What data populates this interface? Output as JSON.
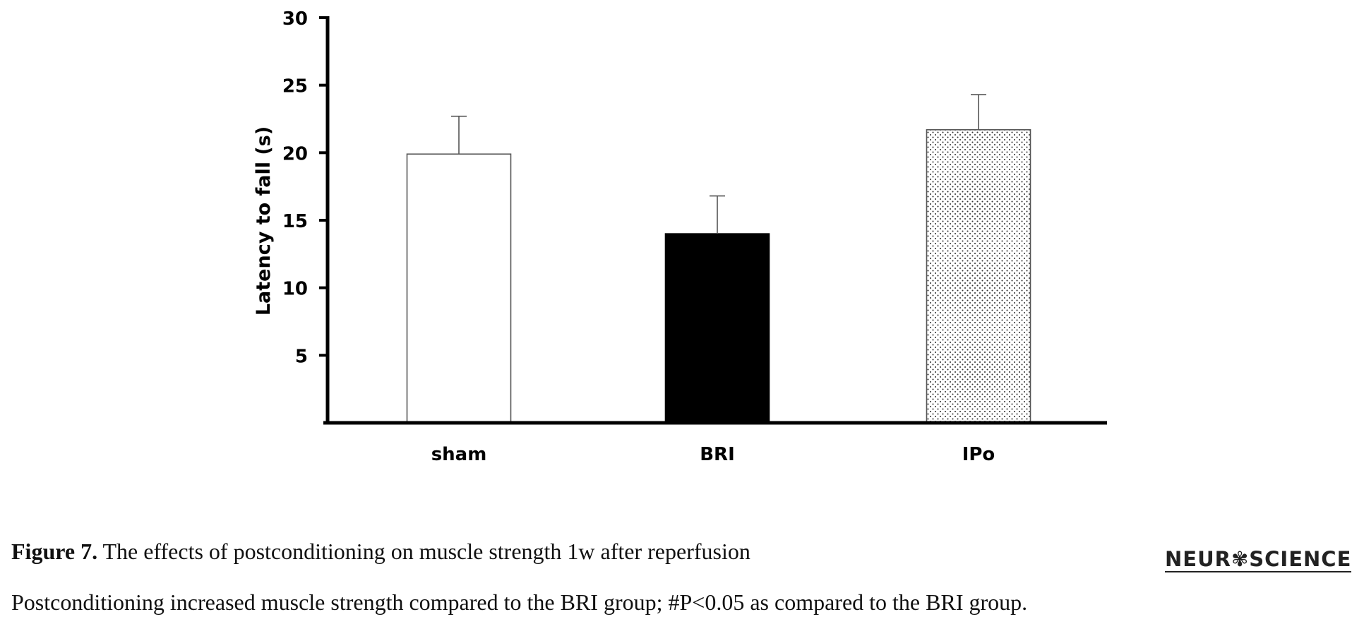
{
  "chart_data": {
    "type": "bar",
    "categories": [
      "sham",
      "BRI",
      "IPo"
    ],
    "values": [
      19.9,
      14.0,
      21.7
    ],
    "error": [
      2.8,
      2.8,
      2.6
    ],
    "ylabel": "Latency to fall (s)",
    "xlabel": "",
    "ylim": [
      0,
      30
    ],
    "yticks": [
      5,
      10,
      15,
      20,
      25,
      30
    ],
    "grid": false,
    "fills": [
      "white",
      "black",
      "dotted"
    ],
    "colors": {
      "bar_outline": "#555555",
      "solid": "#000000",
      "dots": "#333333"
    }
  },
  "caption": {
    "figure_label": "Figure 7.",
    "title": " The effects of postconditioning on muscle strength 1w after reperfusion",
    "note": "Postconditioning increased muscle strength compared to the BRI group; #P<0.05 as compared to the BRI group."
  },
  "logo": {
    "text": "NEUR✾SCIENCE",
    "accent": "#e0247a"
  }
}
